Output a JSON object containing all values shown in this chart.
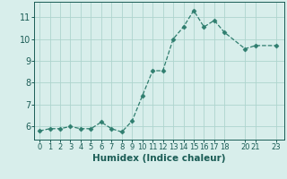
{
  "x": [
    0,
    1,
    2,
    3,
    4,
    5,
    6,
    7,
    8,
    9,
    10,
    11,
    12,
    13,
    14,
    15,
    16,
    17,
    18,
    20,
    21,
    23
  ],
  "y": [
    5.8,
    5.9,
    5.9,
    6.0,
    5.9,
    5.9,
    6.2,
    5.9,
    5.75,
    6.25,
    7.4,
    8.55,
    8.55,
    10.0,
    10.55,
    11.3,
    10.55,
    10.85,
    10.3,
    9.55,
    9.7,
    9.7
  ],
  "xticks": [
    0,
    1,
    2,
    3,
    4,
    5,
    6,
    7,
    8,
    9,
    10,
    11,
    12,
    13,
    14,
    15,
    16,
    17,
    18,
    20,
    21,
    23
  ],
  "xtick_labels": [
    "0",
    "1",
    "2",
    "3",
    "4",
    "5",
    "6",
    "7",
    "8",
    "9",
    "10",
    "11",
    "12",
    "13",
    "14",
    "15",
    "16",
    "17",
    "18",
    "20",
    "21",
    "23"
  ],
  "yticks": [
    6,
    7,
    8,
    9,
    10,
    11
  ],
  "ylim": [
    5.4,
    11.7
  ],
  "xlim": [
    -0.5,
    23.8
  ],
  "xlabel": "Humidex (Indice chaleur)",
  "line_color": "#2e7d6e",
  "marker": "D",
  "marker_size": 2.5,
  "bg_color": "#d8eeeb",
  "grid_color": "#aed4ce",
  "tick_color": "#1a5c55",
  "xlabel_fontsize": 7.5,
  "ytick_fontsize": 7,
  "xtick_fontsize": 6
}
